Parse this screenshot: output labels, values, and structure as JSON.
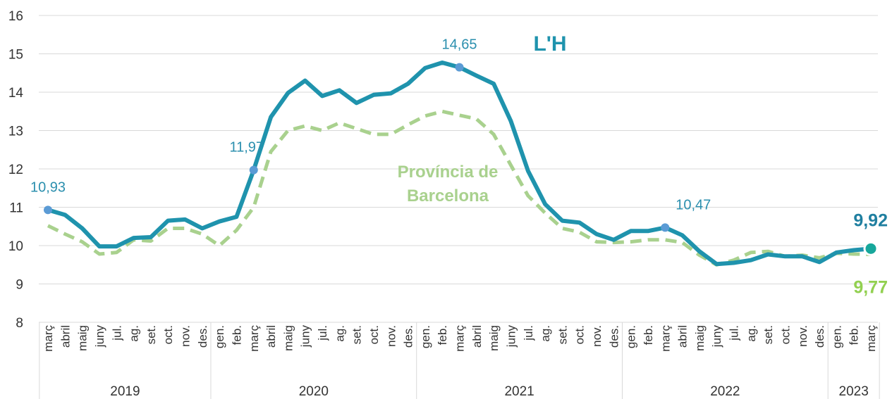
{
  "chart_data": {
    "type": "line",
    "categories": [
      "març",
      "abril",
      "maig",
      "juny",
      "jul.",
      "ag.",
      "set.",
      "oct.",
      "nov.",
      "des.",
      "gen.",
      "feb.",
      "març",
      "abril",
      "maig",
      "juny",
      "jul.",
      "ag.",
      "set.",
      "oct.",
      "nov.",
      "des.",
      "gen.",
      "feb.",
      "març",
      "abril",
      "maig",
      "juny",
      "jul.",
      "ag.",
      "set.",
      "oct.",
      "nov.",
      "des.",
      "gen.",
      "feb.",
      "març",
      "abril",
      "maig",
      "juny",
      "jul.",
      "ag.",
      "set.",
      "oct.",
      "nov.",
      "des.",
      "gen.",
      "feb.",
      "març"
    ],
    "years": [
      "2019",
      "2020",
      "2021",
      "2022",
      "2023"
    ],
    "series": [
      {
        "name": "L'H",
        "color": "#1f93ad",
        "dashed": false,
        "values": [
          10.93,
          10.8,
          10.45,
          9.98,
          9.98,
          10.2,
          10.22,
          10.65,
          10.68,
          10.45,
          10.63,
          10.75,
          11.97,
          13.35,
          13.98,
          14.3,
          13.9,
          14.05,
          13.72,
          13.93,
          13.97,
          14.22,
          14.63,
          14.77,
          14.65,
          14.43,
          14.22,
          13.25,
          11.95,
          11.08,
          10.65,
          10.6,
          10.3,
          10.15,
          10.38,
          10.38,
          10.47,
          10.27,
          9.85,
          9.52,
          9.55,
          9.62,
          9.77,
          9.72,
          9.72,
          9.57,
          9.82,
          9.88,
          9.92
        ],
        "value_labels": [
          "10,93",
          null,
          null,
          null,
          null,
          null,
          null,
          null,
          null,
          null,
          null,
          null,
          "11,97",
          null,
          null,
          null,
          null,
          null,
          null,
          null,
          null,
          null,
          null,
          null,
          "14,65",
          null,
          null,
          null,
          null,
          null,
          null,
          null,
          null,
          null,
          null,
          null,
          "10,47",
          null,
          null,
          null,
          null,
          null,
          null,
          null,
          null,
          null,
          null,
          null,
          "9,92"
        ]
      },
      {
        "name": "Província de Barcelona",
        "color": "#a9d18e",
        "dashed": true,
        "values": [
          10.52,
          10.3,
          10.1,
          9.78,
          9.82,
          10.15,
          10.12,
          10.45,
          10.45,
          10.3,
          10.0,
          10.4,
          11.0,
          12.45,
          13.0,
          13.12,
          13.0,
          13.2,
          13.05,
          12.9,
          12.9,
          13.15,
          13.38,
          13.5,
          13.4,
          13.3,
          12.9,
          12.1,
          11.3,
          10.85,
          10.45,
          10.35,
          10.1,
          10.08,
          10.1,
          10.15,
          10.15,
          10.08,
          9.75,
          9.5,
          9.62,
          9.82,
          9.85,
          9.72,
          9.75,
          9.68,
          9.8,
          9.78,
          9.77
        ],
        "value_labels": [
          null,
          null,
          null,
          null,
          null,
          null,
          null,
          null,
          null,
          null,
          null,
          null,
          null,
          null,
          null,
          null,
          null,
          null,
          null,
          null,
          null,
          null,
          null,
          null,
          null,
          null,
          null,
          null,
          null,
          null,
          null,
          null,
          null,
          null,
          null,
          null,
          null,
          null,
          null,
          null,
          null,
          null,
          null,
          null,
          null,
          null,
          null,
          null,
          "9,77"
        ]
      }
    ],
    "ylim": [
      8,
      16
    ],
    "yticks": [
      8,
      9,
      10,
      11,
      12,
      13,
      14,
      15,
      16
    ],
    "grid": true
  }
}
